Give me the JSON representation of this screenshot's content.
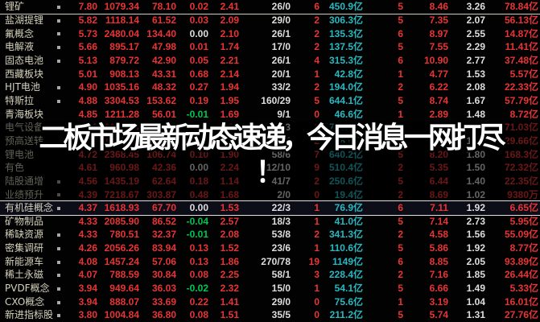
{
  "overlay": {
    "line1": "二板市场最新动态速递，今日消息一网打尽",
    "line2": "！"
  },
  "colors": {
    "background": "#020202",
    "up_red": "#e83434",
    "down_green": "#00c84b",
    "neutral_white": "#dedede",
    "amount_cyan": "#27b9c2",
    "sector_name": "#d5d2bd",
    "marker_gray": "#a8a8a8",
    "divider_line": "#ccccc0",
    "highlight_border": "#e0e0e0"
  },
  "table": {
    "divider_after_first_row": true,
    "highlighted_row_name": "有机硅概念",
    "rows": [
      {
        "name": "锂矿",
        "marker": true,
        "cells": [
          "7.80",
          "1079.34",
          "78.10",
          "0.02",
          "2.41",
          "26/0",
          "6",
          "450.9亿",
          "5",
          "8.46",
          "3.26",
          "78.84亿"
        ]
      },
      {
        "name": "盐湖提锂",
        "marker": true,
        "cells": [
          "5.82",
          "1118.14",
          "61.52",
          "0.03",
          "2.09",
          "29/0",
          "2",
          "306.3亿",
          "5",
          "7.35",
          "2.07",
          "56.13亿"
        ]
      },
      {
        "name": "氟概念",
        "marker": true,
        "cells": [
          "5.73",
          "2480.04",
          "134.40",
          "0.00",
          "2.10",
          "26/1",
          "2",
          "135.3亿",
          "6",
          "8.97",
          "2.55",
          "14.87亿"
        ]
      },
      {
        "name": "电解液",
        "marker": true,
        "cells": [
          "5.66",
          "895.17",
          "47.98",
          "0.01",
          "1.74",
          "17/0",
          "2",
          "137.5亿",
          "5",
          "7.55",
          "2.29",
          "11.41亿"
        ]
      },
      {
        "name": "固态电池",
        "marker": true,
        "cells": [
          "5.13",
          "879.72",
          "42.90",
          "0.05",
          "2.21",
          "26/1",
          "4",
          "315.3亿",
          "6",
          "10.90",
          "2.77",
          "37.48亿"
        ]
      },
      {
        "name": "西藏板块",
        "marker": false,
        "cells": [
          "5.01",
          "908.13",
          "43.31",
          "0.68",
          "2.14",
          "20/1",
          "1",
          "42.8亿",
          "1",
          "4.77",
          "1.53",
          "5.57亿"
        ]
      },
      {
        "name": "HJT电池",
        "marker": true,
        "cells": [
          "4.90",
          "1035.16",
          "48.32",
          "0.27",
          "1.94",
          "33/2",
          "2",
          "194.0亿",
          "2",
          "6.22",
          "2.08",
          "22.33亿"
        ]
      },
      {
        "name": "特斯拉",
        "marker": true,
        "cells": [
          "4.88",
          "3304.53",
          "153.62",
          "0.19",
          "1.95",
          "160/29",
          "5",
          "644.1亿",
          "5",
          "8.74",
          "1.67",
          "57.79亿"
        ]
      },
      {
        "name": "青海板块",
        "marker": false,
        "cells": [
          "4.85",
          "1211.28",
          "56.01",
          "-0.01",
          "1.69",
          "9/1",
          "0",
          "46.6亿",
          "1",
          "2.89",
          "1.48",
          "8.72亿"
        ]
      },
      {
        "name": "电气设备",
        "marker": false,
        "cells": [
          "4.82",
          "2050.09",
          "94.32",
          "0.23",
          "1.68",
          "224/23",
          "1",
          "719.3亿",
          "5",
          "8.69",
          "1.76",
          "71.03亿"
        ]
      },
      {
        "name": "预高送转",
        "marker": false,
        "cells": [
          "4.80",
          "1530.22",
          "70.11",
          "0.12",
          "1.60",
          "45/4",
          "2",
          "88.5亿",
          "3",
          "6.50",
          "1.55",
          "29.66亿"
        ]
      },
      {
        "name": "锂电池",
        "marker": false,
        "cells": [
          "4.72",
          "2368.45",
          "106.74",
          "0.10",
          "1.90",
          "58/6",
          "7",
          "640.2亿",
          "5",
          "8.20",
          "1.80",
          "168.3亿"
        ]
      },
      {
        "name": "有色",
        "marker": false,
        "cells": [
          "4.61",
          "960.98",
          "42.36",
          "0.00",
          "2.24",
          "112/10",
          "9",
          "510.4亿",
          "2",
          "5.35",
          "1.50",
          "72.32亿"
        ]
      },
      {
        "name": "陆股通增",
        "marker": true,
        "cells": [
          "4.56",
          "1435.19",
          "62.64",
          "0.18",
          "1.14",
          "41/7",
          "2",
          "250.6亿",
          "5",
          "6.44",
          "1.40",
          "22.35亿"
        ]
      },
      {
        "name": "业绩预升",
        "marker": true,
        "cells": [
          "4.39",
          "7218.67",
          "303.87",
          "0.48",
          "1.68",
          "2/0",
          "0",
          "19.4亿",
          "2",
          "8.69",
          "1.02",
          "9380万"
        ]
      },
      {
        "name": "有机硅概念",
        "marker": true,
        "highlight": true,
        "cells": [
          "4.37",
          "1618.93",
          "67.70",
          "0.00",
          "1.53",
          "22/3",
          "1",
          "76.9亿",
          "6",
          "7.11",
          "1.92",
          "6.65亿"
        ]
      },
      {
        "name": "矿物制品",
        "marker": false,
        "cells": [
          "4.33",
          "2085.90",
          "86.52",
          "-0.04",
          "2.57",
          "18/3",
          "1",
          "41.0亿",
          "5",
          "7.14",
          "2.73",
          "5.95亿"
        ]
      },
      {
        "name": "稀缺资源",
        "marker": true,
        "cells": [
          "4.33",
          "780.51",
          "32.37",
          "-0.01",
          "2.08",
          "53/8",
          "2",
          "341.3亿",
          "2",
          "4.58",
          "1.56",
          "55.09亿"
        ]
      },
      {
        "name": "密集调研",
        "marker": true,
        "cells": [
          "4.26",
          "2056.26",
          "83.94",
          "0.13",
          "1.52",
          "23/6",
          "1",
          "110.6亿",
          "5",
          "5.86",
          "1.92",
          "8.77亿"
        ]
      },
      {
        "name": "新能源车",
        "marker": true,
        "cells": [
          "4.08",
          "1457.24",
          "57.06",
          "0.13",
          "1.86",
          "270/78",
          "19",
          "1149亿",
          "6",
          "8.85",
          "2.05",
          "93.89亿"
        ]
      },
      {
        "name": "稀土永磁",
        "marker": true,
        "cells": [
          "4.07",
          "788.59",
          "30.84",
          "0.08",
          "2.25",
          "58/1",
          "3",
          "228.4亿",
          "2",
          "7.16",
          "1.85",
          "26.44亿"
        ]
      },
      {
        "name": "PVDF概念",
        "marker": true,
        "cells": [
          "3.94",
          "949.64",
          "36.03",
          "-0.02",
          "2.32",
          "15/0",
          "1",
          "54.1亿",
          "5",
          "6.66",
          "1.49",
          "5.33亿"
        ]
      },
      {
        "name": "CXO概念",
        "marker": true,
        "cells": [
          "3.94",
          "888.07",
          "33.69",
          "0.22",
          "1.41",
          "29/0",
          "0",
          "75.6亿",
          "1",
          "3.19",
          "1.04",
          "16.01亿"
        ]
      },
      {
        "name": "新进指标股",
        "marker": true,
        "cells": [
          "3.80",
          "1004.84",
          "36.80",
          "0.08",
          "1.51",
          "35/5",
          "0",
          "211.2亿",
          "5",
          "5.74",
          "1.31",
          "27.76亿"
        ]
      }
    ]
  }
}
